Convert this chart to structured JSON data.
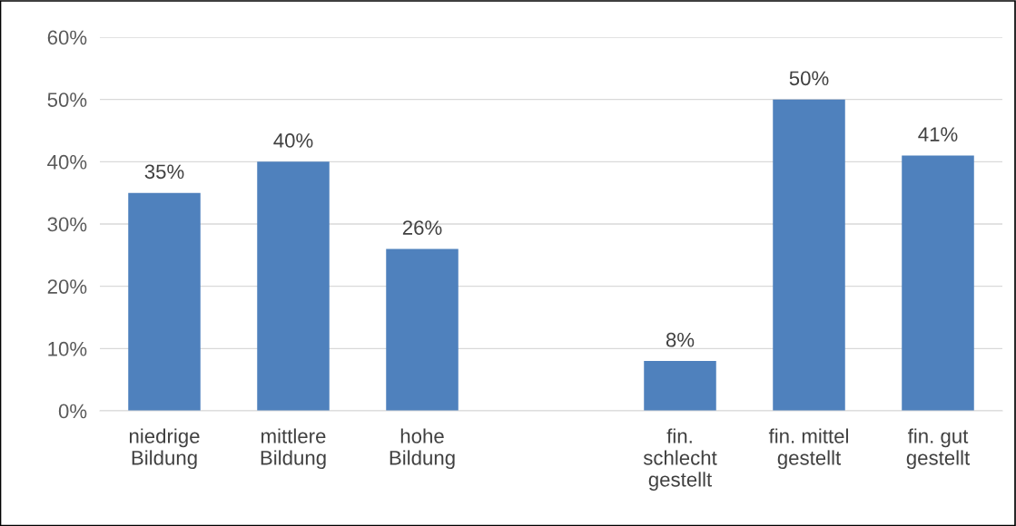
{
  "chart_data": {
    "type": "bar",
    "categories": [
      "niedrige\nBildung",
      "mittlere\nBildung",
      "hohe\nBildung",
      null,
      "fin.\nschlecht\ngestellt",
      "fin. mittel\ngestellt",
      "fin. gut\ngestellt"
    ],
    "values": [
      35,
      40,
      26,
      null,
      8,
      50,
      41
    ],
    "value_labels": [
      "35%",
      "40%",
      "26%",
      null,
      "8%",
      "50%",
      "41%"
    ],
    "color": "#4f81bd",
    "ylim": [
      0,
      60
    ],
    "yticks": [
      {
        "value": 0,
        "label": "0%"
      },
      {
        "value": 10,
        "label": "10%"
      },
      {
        "value": 20,
        "label": "20%"
      },
      {
        "value": 30,
        "label": "30%"
      },
      {
        "value": 40,
        "label": "40%"
      },
      {
        "value": 50,
        "label": "50%"
      },
      {
        "value": 60,
        "label": "60%"
      }
    ],
    "grid": "y",
    "legend": false
  }
}
